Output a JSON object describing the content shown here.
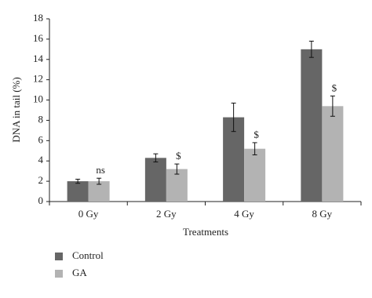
{
  "chart_data": {
    "type": "bar",
    "y_label": "DNA in tail (%)",
    "x_label": "Treatments",
    "categories": [
      "0 Gy",
      "2 Gy",
      "4 Gy",
      "8 Gy"
    ],
    "series": [
      {
        "name": "Control",
        "color": "#666666",
        "values": [
          2.0,
          4.3,
          8.3,
          15.0
        ],
        "errors": [
          0.2,
          0.4,
          1.4,
          0.8
        ]
      },
      {
        "name": "GA",
        "color": "#b3b3b3",
        "values": [
          2.0,
          3.2,
          5.2,
          9.4
        ],
        "errors": [
          0.3,
          0.5,
          0.6,
          1.0
        ],
        "annotations": [
          "ns",
          "$",
          "$",
          "$"
        ]
      }
    ],
    "ylim": [
      0,
      18
    ],
    "yticks": [
      0,
      2,
      4,
      6,
      8,
      10,
      12,
      14,
      16,
      18
    ],
    "grid": false,
    "legend": "bottom-left"
  }
}
